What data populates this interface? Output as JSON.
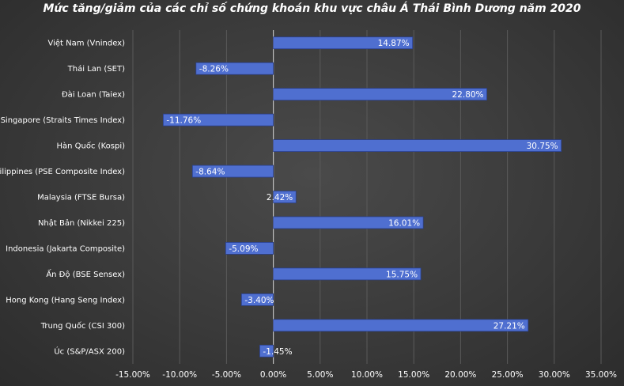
{
  "chart_data": {
    "type": "bar",
    "orientation": "horizontal",
    "title": "Mức tăng/giảm của các chỉ số chứng khoán khu vực châu Á Thái Bình Dương năm 2020",
    "categories": [
      "Việt Nam (Vnindex)",
      "Thái Lan (SET)",
      "Đài Loan (Taiex)",
      "Singapore (Straits Times Index)",
      "Hàn Quốc (Kospi)",
      "Philippines (PSE Composite Index)",
      "Malaysia (FTSE Bursa)",
      "Nhật Bản (Nikkei 225)",
      "Indonesia (Jakarta Composite)",
      "Ấn Độ (BSE Sensex)",
      "Hong Kong (Hang Seng Index)",
      "Trung Quốc (CSI 300)",
      "Úc (S&P/ASX 200)"
    ],
    "values": [
      14.87,
      -8.26,
      22.8,
      -11.76,
      30.75,
      -8.64,
      2.42,
      16.01,
      -5.09,
      15.75,
      -3.4,
      27.21,
      -1.45
    ],
    "data_labels": [
      "14.87%",
      "-8.26%",
      "22.80%",
      "-11.76%",
      "30.75%",
      "-8.64%",
      "2.42%",
      "16.01%",
      "-5.09%",
      "15.75%",
      "-3.40%",
      "27.21%",
      "-1.45%"
    ],
    "xlim": [
      -15,
      35
    ],
    "x_ticks": [
      -15,
      -10,
      -5,
      0,
      5,
      10,
      15,
      20,
      25,
      30,
      35
    ],
    "x_tick_labels": [
      "-15.00%",
      "-10.00%",
      "-5.00%",
      "0.00%",
      "5.00%",
      "10.00%",
      "15.00%",
      "20.00%",
      "25.00%",
      "30.00%",
      "35.00%"
    ],
    "xlabel": "",
    "ylabel": "",
    "grid": true,
    "legend": "none",
    "colors": {
      "bar_fill": "#4f6fd0",
      "bar_edge": "#2a3f8a",
      "gridline": "#5a5a5a",
      "zero_line": "#bfbfbf",
      "text": "#ffffff"
    }
  }
}
